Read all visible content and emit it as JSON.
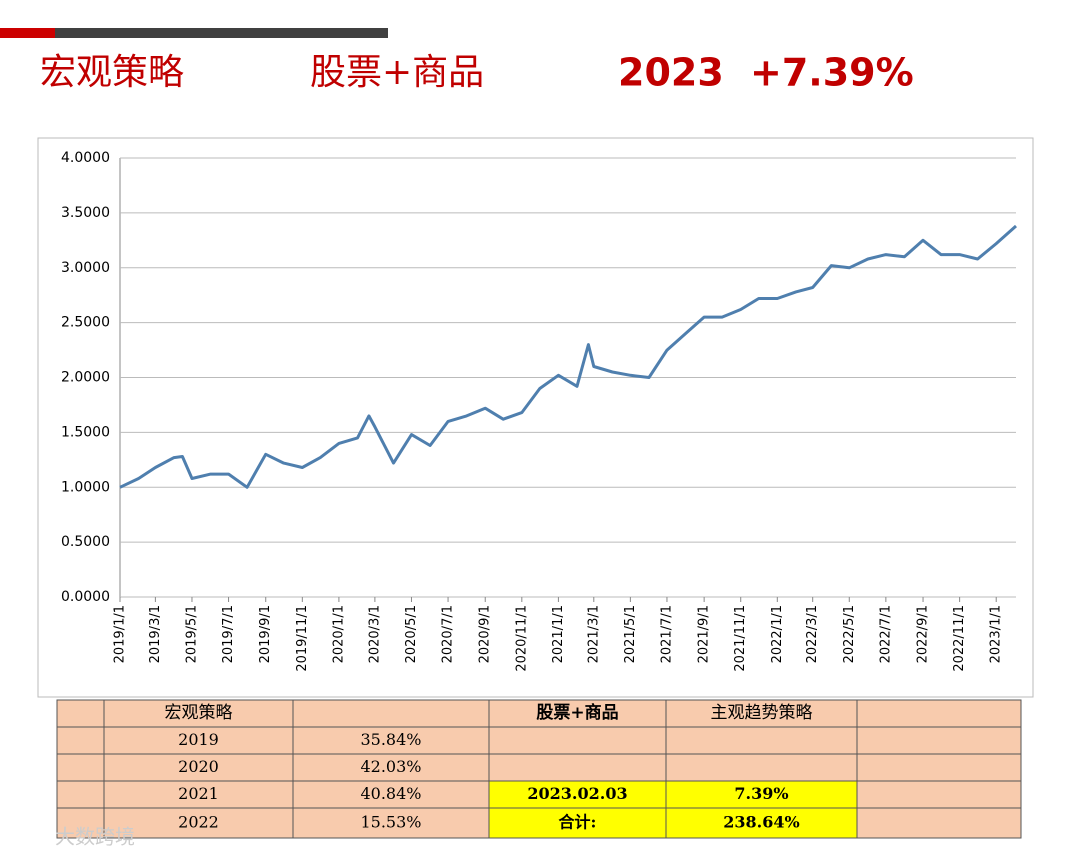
{
  "header": {
    "left": "宏观策略",
    "middle": "股票+商品",
    "year": "2023",
    "return": "+7.39%"
  },
  "chart_data": {
    "type": "line",
    "color": "#4f7fae",
    "grid": true,
    "x": [
      "2019/1/1",
      "2019/2/1",
      "2019/3/1",
      "2019/4/1",
      "2019/4/15",
      "2019/5/1",
      "2019/6/1",
      "2019/7/1",
      "2019/8/1",
      "2019/9/1",
      "2019/10/1",
      "2019/11/1",
      "2019/12/1",
      "2020/1/1",
      "2020/2/1",
      "2020/2/20",
      "2020/3/1",
      "2020/4/1",
      "2020/5/1",
      "2020/6/1",
      "2020/7/1",
      "2020/8/1",
      "2020/9/1",
      "2020/10/1",
      "2020/11/1",
      "2020/12/1",
      "2021/1/1",
      "2021/2/1",
      "2021/2/20",
      "2021/3/1",
      "2021/4/1",
      "2021/5/1",
      "2021/6/1",
      "2021/7/1",
      "2021/8/1",
      "2021/9/1",
      "2021/10/1",
      "2021/11/1",
      "2021/12/1",
      "2022/1/1",
      "2022/2/1",
      "2022/3/1",
      "2022/4/1",
      "2022/5/1",
      "2022/6/1",
      "2022/7/1",
      "2022/8/1",
      "2022/9/1",
      "2022/10/1",
      "2022/11/1",
      "2022/12/1",
      "2023/1/1",
      "2023/2/3"
    ],
    "values": [
      1.0,
      1.08,
      1.18,
      1.27,
      1.28,
      1.08,
      1.12,
      1.12,
      1.0,
      1.3,
      1.22,
      1.18,
      1.27,
      1.4,
      1.45,
      1.65,
      1.55,
      1.22,
      1.48,
      1.38,
      1.6,
      1.65,
      1.72,
      1.62,
      1.68,
      1.9,
      2.02,
      1.92,
      2.3,
      2.1,
      2.05,
      2.02,
      2.0,
      2.25,
      2.4,
      2.55,
      2.55,
      2.62,
      2.72,
      2.72,
      2.78,
      2.82,
      3.02,
      3.0,
      3.08,
      3.12,
      3.1,
      3.25,
      3.12,
      3.12,
      3.08,
      3.22,
      3.38
    ],
    "xlim": [
      "2019/1/1",
      "2023/2/3"
    ],
    "xticks": [
      "2019/1/1",
      "2019/3/1",
      "2019/5/1",
      "2019/7/1",
      "2019/9/1",
      "2019/11/1",
      "2020/1/1",
      "2020/3/1",
      "2020/5/1",
      "2020/7/1",
      "2020/9/1",
      "2020/11/1",
      "2021/1/1",
      "2021/3/1",
      "2021/5/1",
      "2021/7/1",
      "2021/9/1",
      "2021/11/1",
      "2022/1/1",
      "2022/3/1",
      "2022/5/1",
      "2022/7/1",
      "2022/9/1",
      "2022/11/1",
      "2023/1/1"
    ],
    "ylim": [
      0,
      4
    ],
    "yticks": [
      {
        "value": 0,
        "label": "0.0000"
      },
      {
        "value": 0.5,
        "label": "0.5000"
      },
      {
        "value": 1,
        "label": "1.0000"
      },
      {
        "value": 1.5,
        "label": "1.5000"
      },
      {
        "value": 2,
        "label": "2.0000"
      },
      {
        "value": 2.5,
        "label": "2.5000"
      },
      {
        "value": 3,
        "label": "3.0000"
      },
      {
        "value": 3.5,
        "label": "3.5000"
      },
      {
        "value": 4,
        "label": "4.0000"
      }
    ]
  },
  "table": {
    "header": [
      "宏观策略",
      "股票+商品",
      "主观趋势策略"
    ],
    "rows": [
      [
        "2019",
        "35.84%"
      ],
      [
        "2020",
        "42.03%"
      ],
      [
        "2021",
        "40.84%",
        "2023.02.03",
        "7.39%"
      ],
      [
        "2022",
        "15.53%",
        "合计:",
        "238.64%"
      ]
    ]
  },
  "watermark": "大数跨境"
}
